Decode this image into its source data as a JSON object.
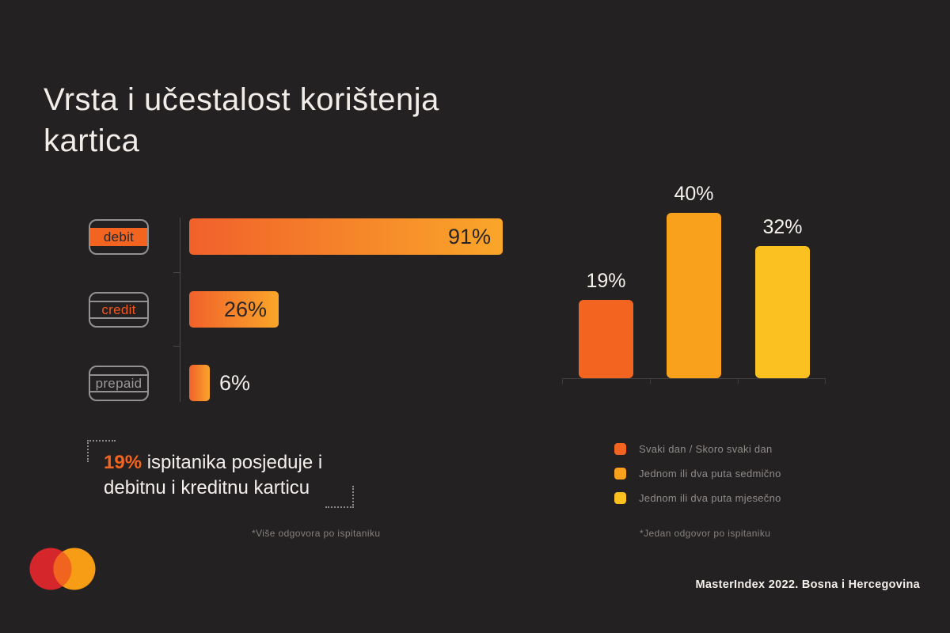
{
  "background_color": "#242122",
  "title": {
    "line1": "Vrsta i učestalost korištenja",
    "line2": "kartica",
    "full": "Vrsta i učestalost korištenja kartica"
  },
  "chart_data": [
    {
      "type": "bar",
      "orientation": "horizontal",
      "subject": "card ownership by card type",
      "categories": [
        "debit",
        "credit",
        "prepaid"
      ],
      "values": [
        91,
        26,
        6
      ],
      "display_values": [
        "91%",
        "26%",
        "6%"
      ],
      "unit": "%",
      "xlim": [
        0,
        100
      ],
      "bar_gradient": [
        "#F1612B",
        "#FAA629"
      ],
      "footnote": "*Više odgovora po ispitaniku"
    },
    {
      "type": "bar",
      "orientation": "vertical",
      "subject": "card usage frequency",
      "categories": [
        "Svaki dan / Skoro svaki dan",
        "Jednom ili dva puta sedmično",
        "Jednom ili dva puta mjesečno"
      ],
      "values": [
        19,
        40,
        32
      ],
      "display_values": [
        "19%",
        "40%",
        "32%"
      ],
      "unit": "%",
      "ylim": [
        0,
        45
      ],
      "colors": [
        "#F2641F",
        "#F9A01D",
        "#FBC120"
      ],
      "legend_position": "bottom",
      "footnote": "*Jedan odgovor po ispitaniku"
    }
  ],
  "callout": {
    "highlight": "19%",
    "rest_line1": " ispitanika posjeduje i",
    "line2": "debitnu i kreditnu karticu"
  },
  "footer": {
    "credit": "MasterIndex 2022. Bosna i Hercegovina"
  },
  "logo": {
    "name": "mastercard-logo",
    "colors": {
      "left": "#D5262B",
      "right": "#F79C15",
      "overlap": "#F1641F"
    }
  },
  "accent_colors": {
    "orange_red": "#F2641F",
    "orange": "#F9A01D",
    "yellow": "#FBC120",
    "text_light": "#F2EDE8",
    "text_gray": "#8F8B88"
  }
}
